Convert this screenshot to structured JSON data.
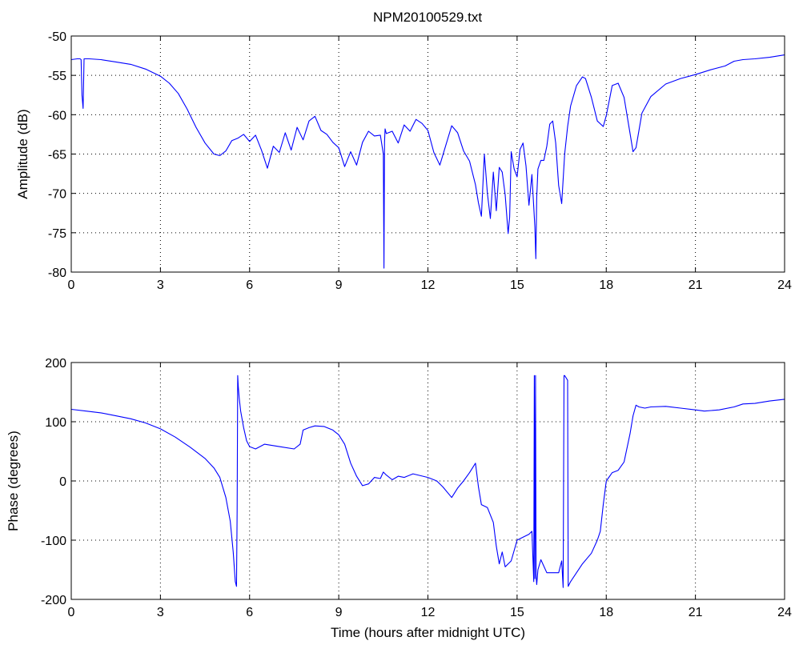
{
  "figure": {
    "title": "NPM20100529.txt"
  },
  "chart_data": [
    {
      "type": "line",
      "title": "NPM20100529.txt",
      "xlabel": "",
      "ylabel": "Amplitude (dB)",
      "xlim": [
        0,
        24
      ],
      "ylim": [
        -80,
        -50
      ],
      "xticks": [
        0,
        3,
        6,
        9,
        12,
        15,
        18,
        21,
        24
      ],
      "xtick_labels": [
        "0",
        "3",
        "6",
        "9",
        "12",
        "15",
        "18",
        "21",
        "24"
      ],
      "yticks": [
        -80,
        -75,
        -70,
        -65,
        -60,
        -55,
        -50
      ],
      "ytick_labels": [
        "-80",
        "-75",
        "-70",
        "-65",
        "-60",
        "-55",
        "-50"
      ],
      "grid": true,
      "line_color": "#0000ff",
      "series": [
        {
          "x": [
            0,
            0.2,
            0.3,
            0.33,
            0.36,
            0.4,
            0.43,
            0.47,
            0.6,
            1.0,
            1.5,
            2.0,
            2.5,
            3.0,
            3.3,
            3.6,
            3.9,
            4.2,
            4.5,
            4.8,
            5.0,
            5.2,
            5.4,
            5.6,
            5.8,
            6.0,
            6.2,
            6.4,
            6.6,
            6.8,
            7.0,
            7.2,
            7.4,
            7.6,
            7.8,
            8.0,
            8.2,
            8.4,
            8.6,
            8.8,
            9.0,
            9.2,
            9.4,
            9.6,
            9.8,
            10.0,
            10.2,
            10.4,
            10.5,
            10.52,
            10.54,
            10.56,
            10.6,
            10.8,
            11.0,
            11.2,
            11.4,
            11.6,
            11.8,
            12.0,
            12.2,
            12.4,
            12.6,
            12.8,
            13.0,
            13.2,
            13.4,
            13.6,
            13.7,
            13.8,
            13.9,
            14.0,
            14.1,
            14.2,
            14.3,
            14.4,
            14.5,
            14.6,
            14.7,
            14.75,
            14.8,
            14.9,
            15.0,
            15.1,
            15.2,
            15.3,
            15.4,
            15.5,
            15.6,
            15.63,
            15.66,
            15.7,
            15.8,
            15.9,
            16.0,
            16.1,
            16.2,
            16.3,
            16.4,
            16.5,
            16.6,
            16.7,
            16.8,
            17.0,
            17.2,
            17.3,
            17.5,
            17.7,
            17.9,
            18.0,
            18.2,
            18.4,
            18.6,
            18.8,
            18.9,
            19.0,
            19.2,
            19.5,
            20.0,
            20.5,
            21.0,
            21.5,
            22.0,
            22.3,
            22.6,
            23.0,
            23.5,
            24.0
          ],
          "y": [
            -53,
            -52.9,
            -52.9,
            -53,
            -57.5,
            -59.2,
            -52.9,
            -52.9,
            -52.9,
            -53,
            -53.3,
            -53.6,
            -54.2,
            -55.1,
            -56,
            -57.3,
            -59.3,
            -61.6,
            -63.6,
            -65,
            -65.2,
            -64.6,
            -63.3,
            -63,
            -62.5,
            -63.4,
            -62.6,
            -64.5,
            -66.8,
            -64,
            -64.8,
            -62.3,
            -64.5,
            -61.6,
            -63.2,
            -60.8,
            -60.2,
            -62,
            -62.5,
            -63.5,
            -64.2,
            -66.6,
            -64.7,
            -66.4,
            -63.5,
            -62.1,
            -62.7,
            -62.6,
            -65,
            -79.5,
            -63.5,
            -61.8,
            -62.4,
            -62.1,
            -63.6,
            -61.3,
            -62.1,
            -60.6,
            -61.1,
            -62,
            -64.8,
            -66.4,
            -63.9,
            -61.4,
            -62.3,
            -64.6,
            -65.9,
            -68.9,
            -71.2,
            -72.9,
            -65,
            -70,
            -73.2,
            -67.3,
            -72.2,
            -66.7,
            -67.3,
            -70.2,
            -75.1,
            -73,
            -64.7,
            -66.9,
            -67.9,
            -64.4,
            -63.6,
            -66.5,
            -71.5,
            -67.6,
            -74.3,
            -78.3,
            -70.5,
            -66.9,
            -65.8,
            -65.8,
            -64,
            -61.2,
            -60.8,
            -63.6,
            -69,
            -71.3,
            -65,
            -61.5,
            -58.9,
            -56.3,
            -55.2,
            -55.4,
            -57.8,
            -60.8,
            -61.5,
            -60.1,
            -56.3,
            -56,
            -57.8,
            -62.4,
            -64.7,
            -64.2,
            -59.8,
            -57.7,
            -56.1,
            -55.4,
            -54.9,
            -54.3,
            -53.8,
            -53.2,
            -53,
            -52.9,
            -52.7,
            -52.4
          ]
        }
      ]
    },
    {
      "type": "line",
      "title": "",
      "xlabel": "Time (hours after midnight UTC)",
      "ylabel": "Phase (degrees)",
      "xlim": [
        0,
        24
      ],
      "ylim": [
        -200,
        200
      ],
      "xticks": [
        0,
        3,
        6,
        9,
        12,
        15,
        18,
        21,
        24
      ],
      "xtick_labels": [
        "0",
        "3",
        "6",
        "9",
        "12",
        "15",
        "18",
        "21",
        "24"
      ],
      "yticks": [
        -200,
        -100,
        0,
        100,
        200
      ],
      "ytick_labels": [
        "-200",
        "-100",
        "0",
        "100",
        "200"
      ],
      "grid": true,
      "line_color": "#0000ff",
      "series": [
        {
          "x": [
            0,
            0.5,
            1.0,
            1.5,
            2.0,
            2.5,
            3.0,
            3.5,
            4.0,
            4.5,
            4.8,
            5.0,
            5.2,
            5.35,
            5.45,
            5.52,
            5.56,
            5.58,
            5.6,
            5.62,
            5.65,
            5.7,
            5.8,
            5.9,
            6.0,
            6.2,
            6.5,
            7.0,
            7.5,
            7.7,
            7.8,
            8.0,
            8.2,
            8.5,
            8.8,
            9.0,
            9.2,
            9.4,
            9.6,
            9.8,
            10.0,
            10.2,
            10.4,
            10.5,
            10.6,
            10.8,
            11.0,
            11.2,
            11.5,
            12.0,
            12.3,
            12.5,
            12.8,
            13.0,
            13.2,
            13.4,
            13.6,
            13.7,
            13.8,
            14.0,
            14.2,
            14.3,
            14.4,
            14.5,
            14.6,
            14.8,
            15.0,
            15.2,
            15.4,
            15.5,
            15.56,
            15.58,
            15.6,
            15.62,
            15.64,
            15.66,
            15.7,
            15.8,
            16.0,
            16.2,
            16.4,
            16.5,
            16.55,
            16.58,
            16.6,
            16.7,
            16.72,
            16.75,
            16.8,
            17.0,
            17.2,
            17.5,
            17.7,
            17.8,
            17.9,
            18.0,
            18.2,
            18.4,
            18.6,
            18.8,
            18.9,
            19.0,
            19.1,
            19.3,
            19.5,
            20.0,
            20.5,
            21.0,
            21.3,
            21.8,
            22.3,
            22.6,
            23.0,
            23.5,
            24.0
          ],
          "y": [
            121,
            118,
            115,
            110,
            105,
            98,
            88,
            74,
            57,
            38,
            22,
            6,
            -28,
            -68,
            -120,
            -170,
            -178,
            -50,
            178,
            160,
            140,
            118,
            90,
            68,
            58,
            54,
            62,
            58,
            54,
            62,
            86,
            90,
            93,
            92,
            86,
            78,
            62,
            30,
            8,
            -8,
            -5,
            6,
            4,
            15,
            10,
            2,
            8,
            6,
            12,
            6,
            0,
            -10,
            -28,
            -12,
            0,
            14,
            30,
            -10,
            -40,
            -45,
            -70,
            -110,
            -140,
            -120,
            -145,
            -135,
            -100,
            -95,
            -90,
            -85,
            -170,
            178,
            -165,
            178,
            -160,
            -175,
            -150,
            -133,
            -155,
            -155,
            -155,
            -135,
            -180,
            178,
            178,
            170,
            -178,
            -175,
            -170,
            -155,
            -140,
            -122,
            -100,
            -85,
            -40,
            0,
            14,
            18,
            32,
            80,
            110,
            128,
            125,
            123,
            125,
            126,
            123,
            120,
            118,
            120,
            125,
            130,
            131,
            135,
            138
          ]
        }
      ]
    }
  ]
}
